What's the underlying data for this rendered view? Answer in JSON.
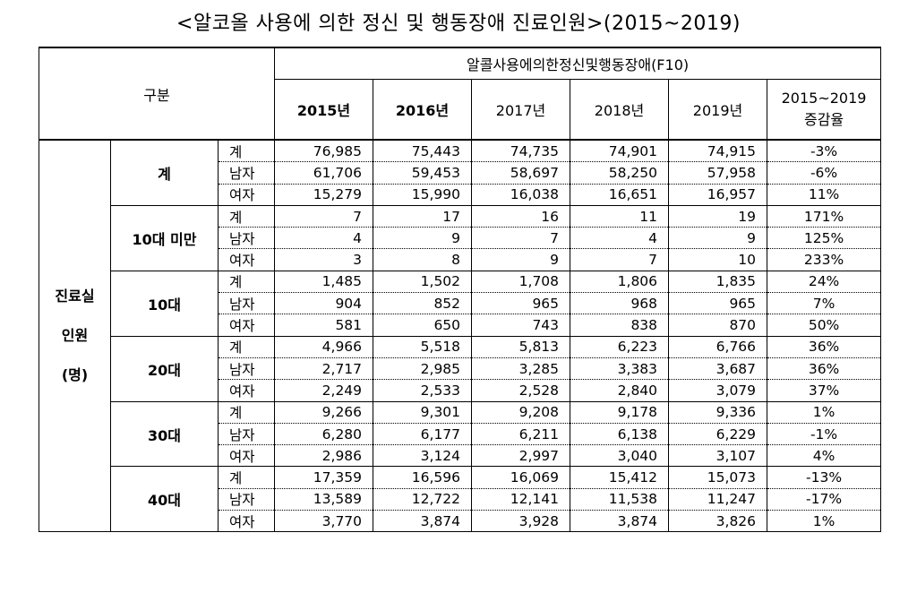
{
  "title": "<알코올 사용에 의한 정신 및 행동장애 진료인원>(2015~2019)",
  "header": {
    "gubun": "구분",
    "f10_label": "알콜사용에의한정신및행동장애(F10)",
    "years": [
      "2015년",
      "2016년",
      "2017년",
      "2018년",
      "2019년"
    ],
    "change_line1": "2015~2019",
    "change_line2": "증감율"
  },
  "row_head": {
    "line1": "진료실",
    "line2": "인원",
    "line3": "(명)"
  },
  "groups": [
    {
      "label": "계",
      "rows": [
        {
          "sub": "계",
          "values": [
            "76,985",
            "75,443",
            "74,735",
            "74,901",
            "74,915"
          ],
          "change": "-3%"
        },
        {
          "sub": "남자",
          "values": [
            "61,706",
            "59,453",
            "58,697",
            "58,250",
            "57,958"
          ],
          "change": "-6%"
        },
        {
          "sub": "여자",
          "values": [
            "15,279",
            "15,990",
            "16,038",
            "16,651",
            "16,957"
          ],
          "change": "11%"
        }
      ]
    },
    {
      "label": "10대 미만",
      "rows": [
        {
          "sub": "계",
          "values": [
            "7",
            "17",
            "16",
            "11",
            "19"
          ],
          "change": "171%"
        },
        {
          "sub": "남자",
          "values": [
            "4",
            "9",
            "7",
            "4",
            "9"
          ],
          "change": "125%"
        },
        {
          "sub": "여자",
          "values": [
            "3",
            "8",
            "9",
            "7",
            "10"
          ],
          "change": "233%"
        }
      ]
    },
    {
      "label": "10대",
      "rows": [
        {
          "sub": "계",
          "values": [
            "1,485",
            "1,502",
            "1,708",
            "1,806",
            "1,835"
          ],
          "change": "24%"
        },
        {
          "sub": "남자",
          "values": [
            "904",
            "852",
            "965",
            "968",
            "965"
          ],
          "change": "7%"
        },
        {
          "sub": "여자",
          "values": [
            "581",
            "650",
            "743",
            "838",
            "870"
          ],
          "change": "50%"
        }
      ]
    },
    {
      "label": "20대",
      "rows": [
        {
          "sub": "계",
          "values": [
            "4,966",
            "5,518",
            "5,813",
            "6,223",
            "6,766"
          ],
          "change": "36%"
        },
        {
          "sub": "남자",
          "values": [
            "2,717",
            "2,985",
            "3,285",
            "3,383",
            "3,687"
          ],
          "change": "36%"
        },
        {
          "sub": "여자",
          "values": [
            "2,249",
            "2,533",
            "2,528",
            "2,840",
            "3,079"
          ],
          "change": "37%"
        }
      ]
    },
    {
      "label": "30대",
      "rows": [
        {
          "sub": "계",
          "values": [
            "9,266",
            "9,301",
            "9,208",
            "9,178",
            "9,336"
          ],
          "change": "1%"
        },
        {
          "sub": "남자",
          "values": [
            "6,280",
            "6,177",
            "6,211",
            "6,138",
            "6,229"
          ],
          "change": "-1%"
        },
        {
          "sub": "여자",
          "values": [
            "2,986",
            "3,124",
            "2,997",
            "3,040",
            "3,107"
          ],
          "change": "4%"
        }
      ]
    },
    {
      "label": "40대",
      "rows": [
        {
          "sub": "계",
          "values": [
            "17,359",
            "16,596",
            "16,069",
            "15,412",
            "15,073"
          ],
          "change": "-13%"
        },
        {
          "sub": "남자",
          "values": [
            "13,589",
            "12,722",
            "12,141",
            "11,538",
            "11,247"
          ],
          "change": "-17%"
        },
        {
          "sub": "여자",
          "values": [
            "3,770",
            "3,874",
            "3,928",
            "3,874",
            "3,826"
          ],
          "change": "1%"
        }
      ]
    }
  ]
}
